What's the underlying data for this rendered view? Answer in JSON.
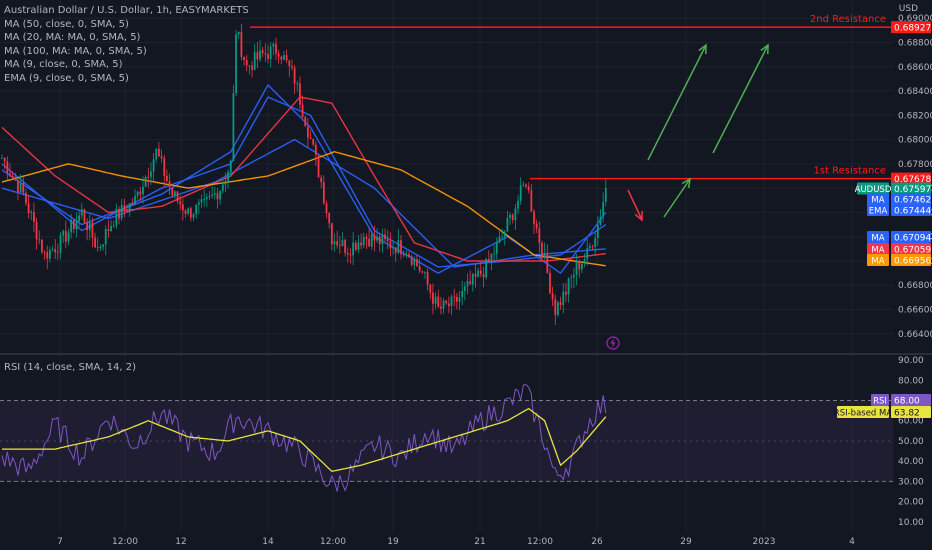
{
  "header": {
    "title": "Australian Dollar / U.S. Dollar, 1h, EASYMARKETS",
    "indicators": [
      "MA (50, close, 0, SMA, 5)",
      "MA (20, MA: MA, 0, SMA, 5)",
      "MA (100, MA: MA, 0, SMA, 5)",
      "MA (9, close, 0, SMA, 5)",
      "EMA (9, close, 0, SMA, 5)"
    ],
    "currency": "USD"
  },
  "colors": {
    "background": "#131722",
    "grid": "#1e222d",
    "candle_up": "#089981",
    "candle_down": "#f23645",
    "resistance": "#ff1a1a",
    "arrow_up": "#4caf50",
    "arrow_down": "#f23645",
    "ma_blue": "#2962ff",
    "ma_red": "#f23645",
    "ma_orange": "#ff9800",
    "rsi_line": "#7e57c2",
    "rsi_ma": "#e8e33d"
  },
  "chart_data": [
    {
      "type": "candlestick",
      "title": "Australian Dollar / U.S. Dollar, 1h, EASYMARKETS",
      "ylabel": "USD",
      "ylim": [
        0.6625,
        0.6915
      ],
      "y_ticks": [
        "0.69000",
        "0.68800",
        "0.68600",
        "0.68400",
        "0.68200",
        "0.68000",
        "0.67800",
        "0.67600",
        "0.67400",
        "0.67200",
        "0.67000",
        "0.66800",
        "0.66600",
        "0.66400"
      ],
      "x_ticks": [
        "7",
        "12:00",
        "12",
        "14",
        "12:00",
        "19",
        "21",
        "12:00",
        "26",
        "29",
        "2023",
        "4"
      ],
      "price_anchors": [
        [
          0,
          0.6785
        ],
        [
          8,
          0.6755
        ],
        [
          16,
          0.6705
        ],
        [
          22,
          0.6715
        ],
        [
          30,
          0.674
        ],
        [
          36,
          0.671
        ],
        [
          42,
          0.6735
        ],
        [
          50,
          0.675
        ],
        [
          58,
          0.679
        ],
        [
          64,
          0.6755
        ],
        [
          70,
          0.674
        ],
        [
          76,
          0.6745
        ],
        [
          82,
          0.676
        ],
        [
          86,
          0.678
        ],
        [
          88,
          0.689
        ],
        [
          92,
          0.686
        ],
        [
          98,
          0.687
        ],
        [
          104,
          0.6875
        ],
        [
          110,
          0.685
        ],
        [
          116,
          0.68
        ],
        [
          120,
          0.6765
        ],
        [
          124,
          0.672
        ],
        [
          130,
          0.671
        ],
        [
          136,
          0.672
        ],
        [
          144,
          0.6715
        ],
        [
          152,
          0.671
        ],
        [
          158,
          0.669
        ],
        [
          164,
          0.666
        ],
        [
          170,
          0.6665
        ],
        [
          176,
          0.668
        ],
        [
          182,
          0.6695
        ],
        [
          188,
          0.672
        ],
        [
          194,
          0.675
        ],
        [
          197,
          0.6766
        ],
        [
          200,
          0.6735
        ],
        [
          204,
          0.67
        ],
        [
          208,
          0.666
        ],
        [
          212,
          0.6675
        ],
        [
          216,
          0.6695
        ],
        [
          220,
          0.6705
        ],
        [
          224,
          0.673
        ],
        [
          227,
          0.676
        ]
      ],
      "moving_averages": [
        {
          "name": "MA",
          "value": "0.67462",
          "color": "#2962ff",
          "anchors": [
            [
              0,
              0.678
            ],
            [
              30,
              0.6725
            ],
            [
              60,
              0.676
            ],
            [
              86,
              0.678
            ],
            [
              100,
              0.6835
            ],
            [
              116,
              0.682
            ],
            [
              140,
              0.6725
            ],
            [
              164,
              0.6695
            ],
            [
              190,
              0.67
            ],
            [
              210,
              0.6705
            ],
            [
              227,
              0.673
            ]
          ]
        },
        {
          "name": "EMA",
          "value": "0.67444",
          "color": "#2962ff",
          "anchors": [
            [
              0,
              0.6775
            ],
            [
              30,
              0.673
            ],
            [
              60,
              0.6755
            ],
            [
              86,
              0.679
            ],
            [
              100,
              0.6845
            ],
            [
              116,
              0.681
            ],
            [
              140,
              0.672
            ],
            [
              164,
              0.669
            ],
            [
              190,
              0.672
            ],
            [
              210,
              0.669
            ],
            [
              227,
              0.674
            ]
          ]
        },
        {
          "name": "MA",
          "value": "0.67094",
          "color": "#2962ff",
          "anchors": [
            [
              0,
              0.676
            ],
            [
              40,
              0.6735
            ],
            [
              80,
              0.6765
            ],
            [
              110,
              0.68
            ],
            [
              140,
              0.676
            ],
            [
              170,
              0.6695
            ],
            [
              200,
              0.6705
            ],
            [
              227,
              0.671
            ]
          ]
        },
        {
          "name": "MA",
          "value": "0.67059",
          "color": "#f23645",
          "anchors": [
            [
              0,
              0.681
            ],
            [
              20,
              0.677
            ],
            [
              40,
              0.674
            ],
            [
              60,
              0.6745
            ],
            [
              86,
              0.677
            ],
            [
              112,
              0.6835
            ],
            [
              124,
              0.683
            ],
            [
              140,
              0.677
            ],
            [
              155,
              0.6715
            ],
            [
              175,
              0.67
            ],
            [
              205,
              0.67
            ],
            [
              227,
              0.6706
            ]
          ]
        },
        {
          "name": "MA",
          "value": "0.66956",
          "color": "#ff9800",
          "anchors": [
            [
              0,
              0.6765
            ],
            [
              25,
              0.678
            ],
            [
              45,
              0.677
            ],
            [
              70,
              0.676
            ],
            [
              100,
              0.677
            ],
            [
              125,
              0.679
            ],
            [
              150,
              0.6775
            ],
            [
              175,
              0.6745
            ],
            [
              200,
              0.6705
            ],
            [
              227,
              0.6696
            ]
          ]
        }
      ],
      "resistance_levels": [
        {
          "label": "2nd Resistance",
          "price": "0.68927",
          "value": 0.68927
        },
        {
          "label": "1st Resistance",
          "price": "0.67678",
          "value": 0.67678
        }
      ],
      "price_tags": [
        {
          "label": "AUDUSD",
          "value": "0.67597",
          "price": 0.67597
        }
      ]
    },
    {
      "type": "line",
      "title": "RSI (14, close, SMA, 14, 2)",
      "ylim": [
        5,
        92
      ],
      "y_ticks": [
        "90.00",
        "80.00",
        "70.00",
        "60.00",
        "50.00",
        "40.00",
        "30.00",
        "20.00",
        "10.00"
      ],
      "bands": [
        30,
        70
      ],
      "series": [
        {
          "name": "RSI",
          "value": "68.00",
          "anchors": [
            [
              0,
              42
            ],
            [
              10,
              35
            ],
            [
              20,
              58
            ],
            [
              30,
              42
            ],
            [
              40,
              62
            ],
            [
              50,
              48
            ],
            [
              60,
              64
            ],
            [
              70,
              50
            ],
            [
              80,
              44
            ],
            [
              88,
              62
            ],
            [
              100,
              55
            ],
            [
              112,
              45
            ],
            [
              124,
              28
            ],
            [
              130,
              32
            ],
            [
              140,
              48
            ],
            [
              150,
              42
            ],
            [
              160,
              55
            ],
            [
              170,
              45
            ],
            [
              180,
              60
            ],
            [
              190,
              68
            ],
            [
              197,
              75
            ],
            [
              204,
              50
            ],
            [
              208,
              32
            ],
            [
              214,
              40
            ],
            [
              220,
              58
            ],
            [
              224,
              66
            ],
            [
              227,
              68
            ]
          ]
        },
        {
          "name": "RSI-based MA",
          "value": "63.82",
          "anchors": [
            [
              0,
              46
            ],
            [
              20,
              46
            ],
            [
              40,
              52
            ],
            [
              55,
              60
            ],
            [
              70,
              52
            ],
            [
              85,
              50
            ],
            [
              100,
              55
            ],
            [
              112,
              50
            ],
            [
              124,
              35
            ],
            [
              135,
              38
            ],
            [
              150,
              44
            ],
            [
              170,
              52
            ],
            [
              190,
              60
            ],
            [
              198,
              66
            ],
            [
              204,
              60
            ],
            [
              210,
              38
            ],
            [
              216,
              45
            ],
            [
              227,
              62
            ]
          ]
        }
      ]
    }
  ]
}
